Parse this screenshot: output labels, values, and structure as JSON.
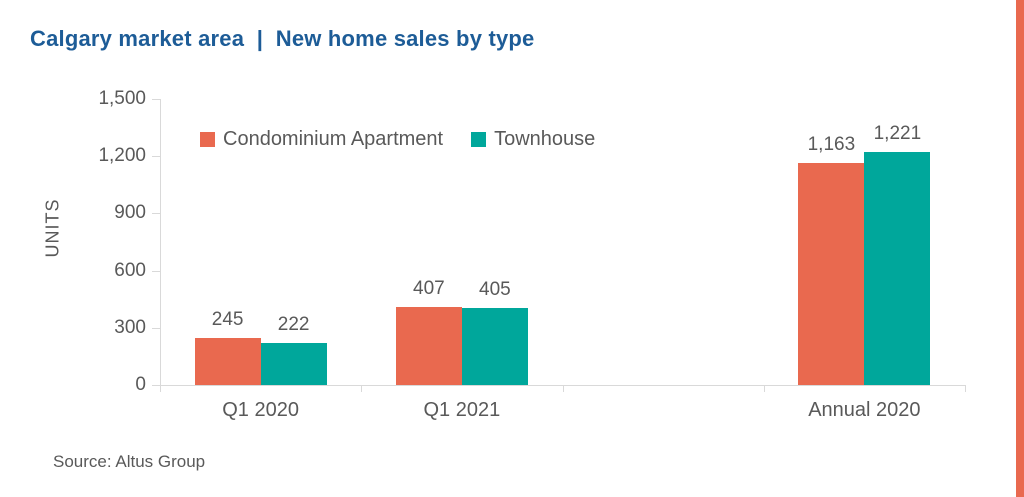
{
  "page": {
    "title": "Calgary market area  |  New home sales by type",
    "source": "Source: Altus Group",
    "accent_stripe_color": "#E9694F"
  },
  "chart_data": {
    "type": "bar",
    "title": "Calgary market area | New home sales by type",
    "xlabel": "",
    "ylabel": "UNITS",
    "ylim": [
      0,
      1500
    ],
    "yticks": [
      0,
      300,
      600,
      900,
      1200,
      1500
    ],
    "ytick_labels": [
      "0",
      "300",
      "600",
      "900",
      "1,200",
      "1,500"
    ],
    "categories": [
      "Q1 2020",
      "Q1 2021",
      "",
      "Annual 2020"
    ],
    "series": [
      {
        "name": "Condominium Apartment",
        "color": "#E9694F",
        "values": [
          245,
          407,
          null,
          1163
        ],
        "labels": [
          "245",
          "407",
          "",
          "1,163"
        ]
      },
      {
        "name": "Townhouse",
        "color": "#00A79B",
        "values": [
          222,
          405,
          null,
          1221
        ],
        "labels": [
          "222",
          "405",
          "",
          "1,221"
        ]
      }
    ],
    "legend_position": "top-left-inside",
    "grid": false,
    "axis_color": "#D9D9D9",
    "text_color": "#595959"
  }
}
